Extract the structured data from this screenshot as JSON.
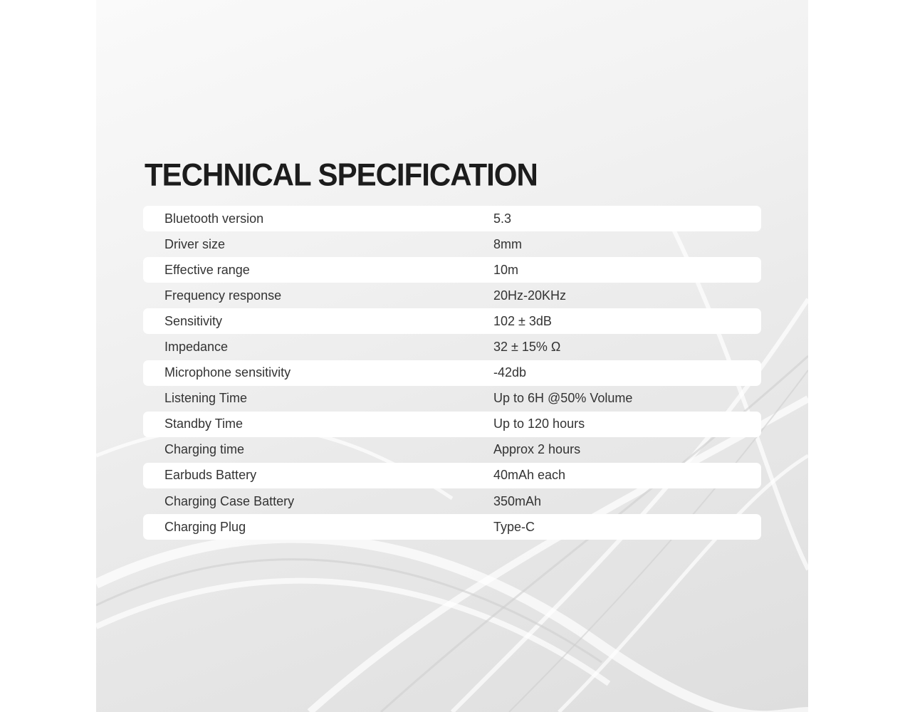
{
  "title": "TECHNICAL SPECIFICATION",
  "specs": [
    {
      "label": "Bluetooth version",
      "value": "5.3"
    },
    {
      "label": "Driver size",
      "value": "8mm"
    },
    {
      "label": "Effective range",
      "value": "10m"
    },
    {
      "label": "Frequency response",
      "value": "20Hz-20KHz"
    },
    {
      "label": "Sensitivity",
      "value": "102 ± 3dB"
    },
    {
      "label": "Impedance",
      "value": "32 ± 15% Ω"
    },
    {
      "label": "Microphone sensitivity",
      "value": "-42db"
    },
    {
      "label": "Listening Time",
      "value": "Up to 6H @50% Volume"
    },
    {
      "label": "Standby Time",
      "value": "Up to 120 hours"
    },
    {
      "label": "Charging time",
      "value": "Approx 2 hours"
    },
    {
      "label": "Earbuds Battery",
      "value": "40mAh each"
    },
    {
      "label": "Charging Case Battery",
      "value": "350mAh"
    },
    {
      "label": "Charging Plug",
      "value": "Type-C"
    }
  ]
}
